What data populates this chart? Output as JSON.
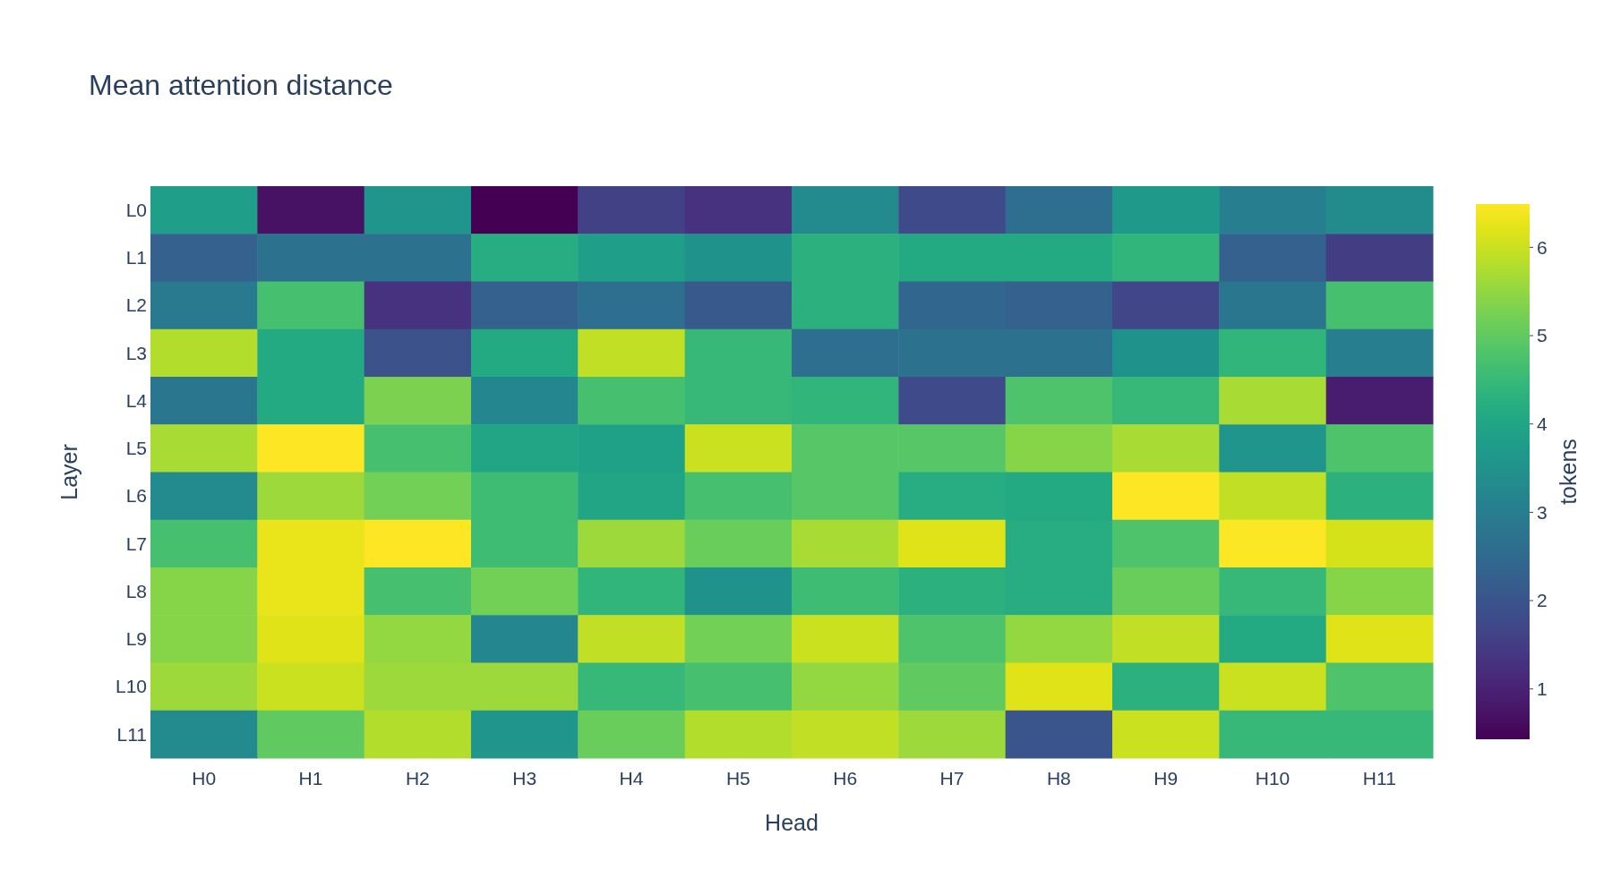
{
  "chart_data": {
    "type": "heatmap",
    "title": "Mean attention distance",
    "xlabel": "Head",
    "ylabel": "Layer",
    "clabel": "tokens",
    "categories": [
      "H0",
      "H1",
      "H2",
      "H3",
      "H4",
      "H5",
      "H6",
      "H7",
      "H8",
      "H9",
      "H10",
      "H11"
    ],
    "y_categories": [
      "L0",
      "L1",
      "L2",
      "L3",
      "L4",
      "L5",
      "L6",
      "L7",
      "L8",
      "L9",
      "L10",
      "L11"
    ],
    "cells": [
      [
        3.8,
        0.7,
        3.6,
        0.43,
        1.6,
        1.3,
        3.3,
        1.8,
        2.6,
        3.7,
        3.0,
        3.35
      ],
      [
        2.3,
        2.7,
        2.7,
        4.2,
        3.8,
        3.5,
        4.3,
        4.1,
        4.1,
        4.4,
        2.3,
        1.5
      ],
      [
        2.9,
        4.7,
        1.3,
        2.3,
        2.6,
        2.1,
        4.3,
        2.4,
        2.3,
        1.7,
        2.8,
        4.7
      ],
      [
        5.8,
        4.1,
        1.95,
        4.1,
        5.9,
        4.5,
        2.6,
        2.7,
        2.7,
        3.5,
        4.4,
        3.0
      ],
      [
        2.8,
        4.1,
        5.3,
        3.2,
        4.7,
        4.5,
        4.4,
        1.8,
        4.8,
        4.5,
        5.7,
        0.9
      ],
      [
        5.7,
        6.49,
        4.7,
        4.0,
        3.9,
        6.0,
        4.9,
        4.9,
        5.4,
        5.7,
        3.6,
        4.8
      ],
      [
        3.3,
        5.6,
        5.2,
        4.6,
        4.0,
        4.7,
        4.9,
        4.2,
        4.1,
        6.49,
        5.9,
        4.3
      ],
      [
        4.7,
        6.3,
        6.49,
        4.6,
        5.6,
        5.1,
        5.7,
        6.2,
        4.2,
        4.8,
        6.45,
        6.1
      ],
      [
        5.4,
        6.3,
        4.7,
        5.2,
        4.4,
        3.5,
        4.6,
        4.3,
        4.2,
        5.1,
        4.5,
        5.4
      ],
      [
        5.4,
        6.2,
        5.5,
        3.2,
        5.9,
        5.2,
        6.0,
        4.8,
        5.5,
        5.9,
        4.1,
        6.2
      ],
      [
        5.6,
        6.0,
        5.6,
        5.6,
        4.5,
        4.7,
        5.5,
        5.0,
        6.2,
        4.3,
        6.0,
        4.8
      ],
      [
        3.3,
        5.0,
        5.8,
        3.6,
        5.1,
        5.8,
        5.9,
        5.6,
        2.0,
        6.0,
        4.5,
        4.5
      ]
    ],
    "clim": [
      0.43,
      6.49
    ],
    "cticks": [
      1,
      2,
      3,
      4,
      5,
      6
    ]
  }
}
